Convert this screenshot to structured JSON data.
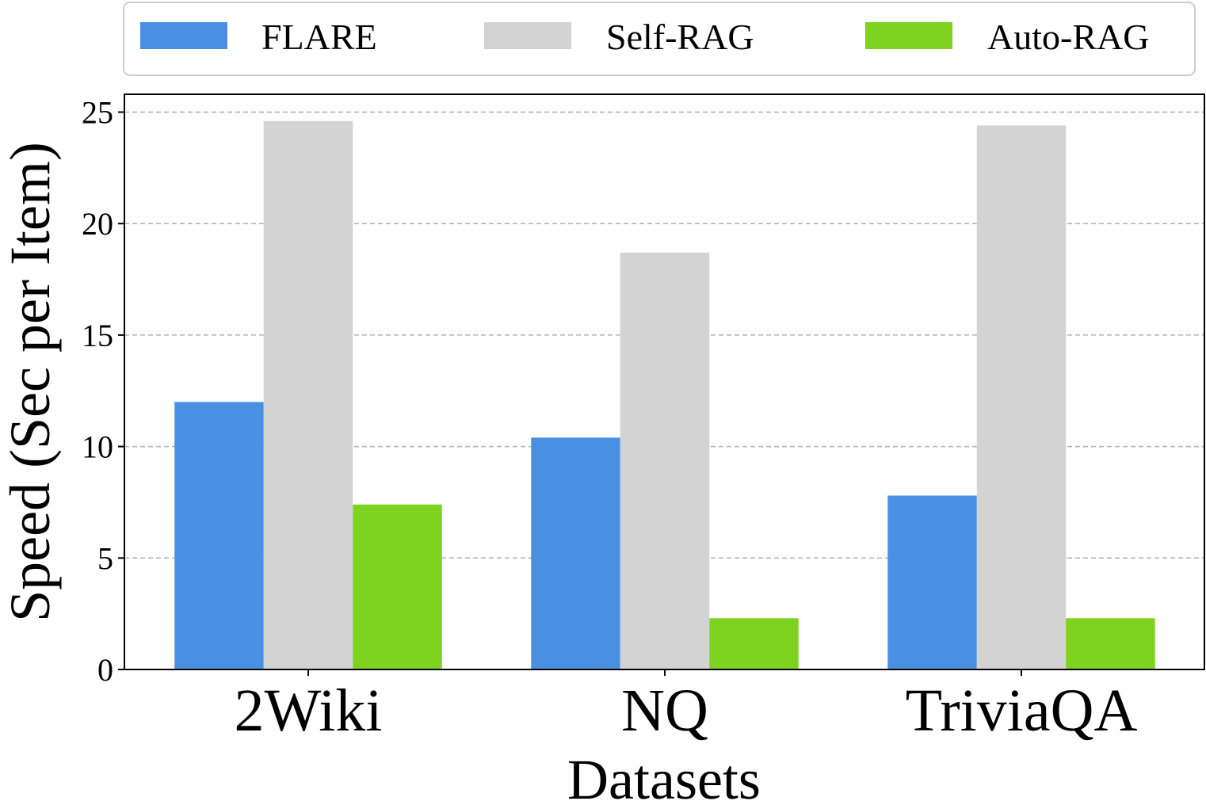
{
  "chart_data": {
    "type": "bar",
    "title": "",
    "xlabel": "Datasets",
    "ylabel": "Speed (Sec per Item)",
    "categories": [
      "2Wiki",
      "NQ",
      "TriviaQA"
    ],
    "series": [
      {
        "name": "FLARE",
        "color": "#4a90e2",
        "values": [
          12.0,
          10.4,
          7.8
        ]
      },
      {
        "name": "Self-RAG",
        "color": "#d3d3d3",
        "values": [
          24.6,
          18.7,
          24.4
        ]
      },
      {
        "name": "Auto-RAG",
        "color": "#7ed321",
        "values": [
          7.4,
          2.3,
          2.3
        ]
      }
    ],
    "ylim": [
      0,
      25.8
    ],
    "yticks": [
      0,
      5,
      10,
      15,
      20,
      25
    ],
    "grid": true,
    "grid_axis": "y",
    "legend_position": "top"
  }
}
